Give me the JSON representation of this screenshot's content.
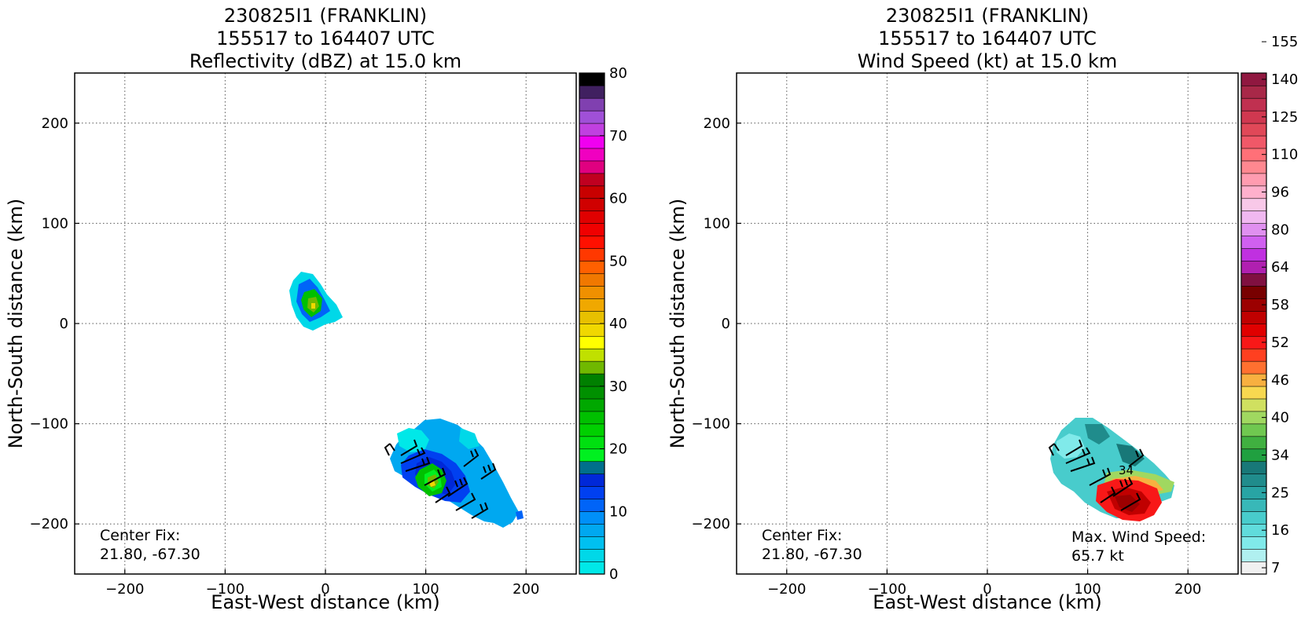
{
  "chart_data": [
    {
      "type": "heatmap",
      "panel": "left",
      "title_lines": [
        "230825I1 (FRANKLIN)",
        "155517 to 164407 UTC",
        "Reflectivity (dBZ) at 15.0 km"
      ],
      "xlabel": "East-West distance (km)",
      "ylabel": "North-South distance (km)",
      "xlim": [
        -250,
        250
      ],
      "ylim": [
        -250,
        250
      ],
      "xticks": [
        -200,
        -100,
        0,
        100,
        200
      ],
      "yticks": [
        -200,
        -100,
        0,
        100,
        200
      ],
      "xtick_labels": [
        "−200",
        "−100",
        "0",
        "100",
        "200"
      ],
      "ytick_labels": [
        "−200",
        "−100",
        "0",
        "100",
        "200"
      ],
      "grid": true,
      "colorbar": {
        "label": "dBZ",
        "min": 0,
        "max": 80,
        "tick_values": [
          0,
          10,
          20,
          30,
          40,
          50,
          60,
          70,
          80
        ],
        "tick_labels": [
          "0",
          "10",
          "20",
          "30",
          "40",
          "50",
          "60",
          "70",
          "80"
        ],
        "colors": [
          "#00e8e8",
          "#00d8e8",
          "#00c0f0",
          "#00a8f0",
          "#0090f8",
          "#0064f8",
          "#0040f0",
          "#0028d8",
          "#006f8c",
          "#00f020",
          "#00e010",
          "#00d000",
          "#00c000",
          "#00a800",
          "#009000",
          "#008000",
          "#70b800",
          "#c0e000",
          "#ffff00",
          "#f0d800",
          "#e8c000",
          "#f0a800",
          "#f09000",
          "#f07800",
          "#ff6000",
          "#ff3800",
          "#ff1000",
          "#f00000",
          "#e00000",
          "#d00000",
          "#c80000",
          "#c00020",
          "#e00080",
          "#f000c0",
          "#f000f0",
          "#c040e0",
          "#a050d8",
          "#8040b0",
          "#402060",
          "#000000"
        ]
      },
      "annotations": [
        {
          "label": "Center Fix:",
          "value": "21.80, -67.30"
        }
      ],
      "echo_regions": [
        {
          "name": "northern-cell",
          "center": [
            -12,
            18
          ],
          "extent_km": [
            [
              -35,
              15
            ],
            [
              -5,
              50
            ]
          ],
          "core_dbz": 35
        },
        {
          "name": "southern-cluster",
          "center": [
            110,
            -150
          ],
          "extent_km": [
            [
              65,
              195
            ],
            [
              -220,
              -95
            ]
          ],
          "core_dbz": 30
        }
      ]
    },
    {
      "type": "heatmap",
      "panel": "right",
      "title_lines": [
        "230825I1 (FRANKLIN)",
        "155517 to 164407 UTC",
        "Wind Speed (kt) at 15.0 km"
      ],
      "xlabel": "East-West distance (km)",
      "ylabel": "North-South distance (km)",
      "xlim": [
        -250,
        250
      ],
      "ylim": [
        -250,
        250
      ],
      "xticks": [
        -200,
        -100,
        0,
        100,
        200
      ],
      "yticks": [
        -200,
        -100,
        0,
        100,
        200
      ],
      "xtick_labels": [
        "−200",
        "−100",
        "0",
        "100",
        "200"
      ],
      "ytick_labels": [
        "−200",
        "−100",
        "0",
        "100",
        "200"
      ],
      "grid": true,
      "colorbar": {
        "label": "kt",
        "tick_labels": [
          "7",
          "16",
          "25",
          "34",
          "40",
          "46",
          "52",
          "58",
          "64",
          "80",
          "96",
          "110",
          "125",
          "140",
          "155"
        ],
        "colors": [
          "#f0f0f0",
          "#b0f0f0",
          "#80eaea",
          "#60dcdc",
          "#48cccc",
          "#38b8b8",
          "#28a4a4",
          "#208c8c",
          "#187878",
          "#20a040",
          "#40b040",
          "#70c850",
          "#a0d860",
          "#d0e060",
          "#f8d850",
          "#f8b040",
          "#ff7030",
          "#ff4020",
          "#f81818",
          "#e00000",
          "#c00000",
          "#9c0000",
          "#780000",
          "#801040",
          "#b020b0",
          "#c030e0",
          "#d060f0",
          "#e090f0",
          "#f0b8f0",
          "#f8c8e8",
          "#ffb0cc",
          "#ff9cb0",
          "#ff8890",
          "#ff7078",
          "#f05868",
          "#e04858",
          "#d03850",
          "#c03050",
          "#a82848",
          "#901840"
        ]
      },
      "annotations": [
        {
          "label": "Center Fix:",
          "value": "21.80, -67.30"
        },
        {
          "label": "Max. Wind Speed:",
          "value": "65.7 kt"
        }
      ],
      "contour_labels": [
        "34"
      ],
      "wind_regions": [
        {
          "name": "moderate-wind-band",
          "center": [
            115,
            -130
          ],
          "extent_km": [
            [
              60,
              170
            ],
            [
              -175,
              -100
            ]
          ],
          "speed_kt": 20
        },
        {
          "name": "maximum-wind-core",
          "center": [
            138,
            -180
          ],
          "extent_km": [
            [
              100,
              185
            ],
            [
              -200,
              -155
            ]
          ],
          "speed_kt": 60
        }
      ]
    }
  ]
}
